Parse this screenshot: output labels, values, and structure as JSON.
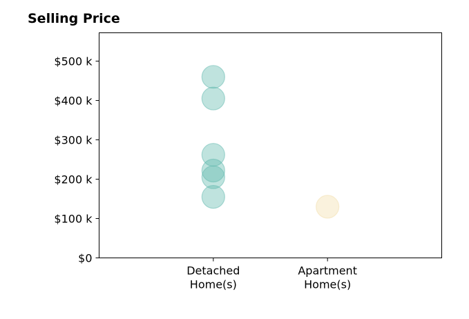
{
  "chart_data": {
    "type": "scatter",
    "title": "Selling Price",
    "xlabel": "",
    "ylabel": "",
    "categories": [
      "Detached\nHome(s)",
      "Apartment\nHome(s)"
    ],
    "y_ticks": [
      {
        "value": 0,
        "label": "$0"
      },
      {
        "value": 100000,
        "label": "$100 k"
      },
      {
        "value": 200000,
        "label": "$200 k"
      },
      {
        "value": 300000,
        "label": "$300 k"
      },
      {
        "value": 400000,
        "label": "$400 k"
      },
      {
        "value": 500000,
        "label": "$500 k"
      }
    ],
    "ylim": [
      0,
      572000
    ],
    "grid": false,
    "series": [
      {
        "category": "Detached\nHome(s)",
        "color": "#5fb8ad",
        "values": [
          460000,
          405000,
          262000,
          222000,
          205000,
          155000
        ]
      },
      {
        "category": "Apartment\nHome(s)",
        "color": "#f2deaa",
        "values": [
          130000
        ]
      }
    ]
  }
}
